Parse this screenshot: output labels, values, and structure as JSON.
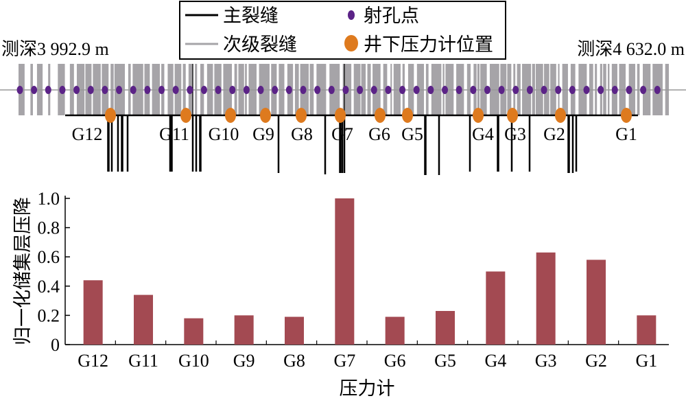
{
  "legend": {
    "main_fracture": "主裂缝",
    "secondary_fracture": "次级裂缝",
    "perforation": "射孔点",
    "gauge_position": "井下压力计位置"
  },
  "depth_start": "测深3 992.9 m",
  "depth_end": "测深4 632.0 m",
  "colors": {
    "bar": "#A34A52",
    "perforation": "#5B2387",
    "gauge": "#DE7A1E",
    "secondary": "#A6A4A8"
  },
  "chart_data": {
    "type": "bar",
    "categories": [
      "G12",
      "G11",
      "G10",
      "G9",
      "G8",
      "G7",
      "G6",
      "G5",
      "G4",
      "G3",
      "G2",
      "G1"
    ],
    "values": [
      0.44,
      0.34,
      0.18,
      0.2,
      0.19,
      1.0,
      0.19,
      0.23,
      0.5,
      0.63,
      0.58,
      0.2
    ],
    "xlabel": "压力计",
    "ylabel": "归一化储集层压降",
    "ylim": [
      0,
      1.0
    ],
    "yticks": [
      "0",
      "0.2",
      "0.4",
      "0.6",
      "0.8",
      "1.0"
    ],
    "grid": false
  }
}
